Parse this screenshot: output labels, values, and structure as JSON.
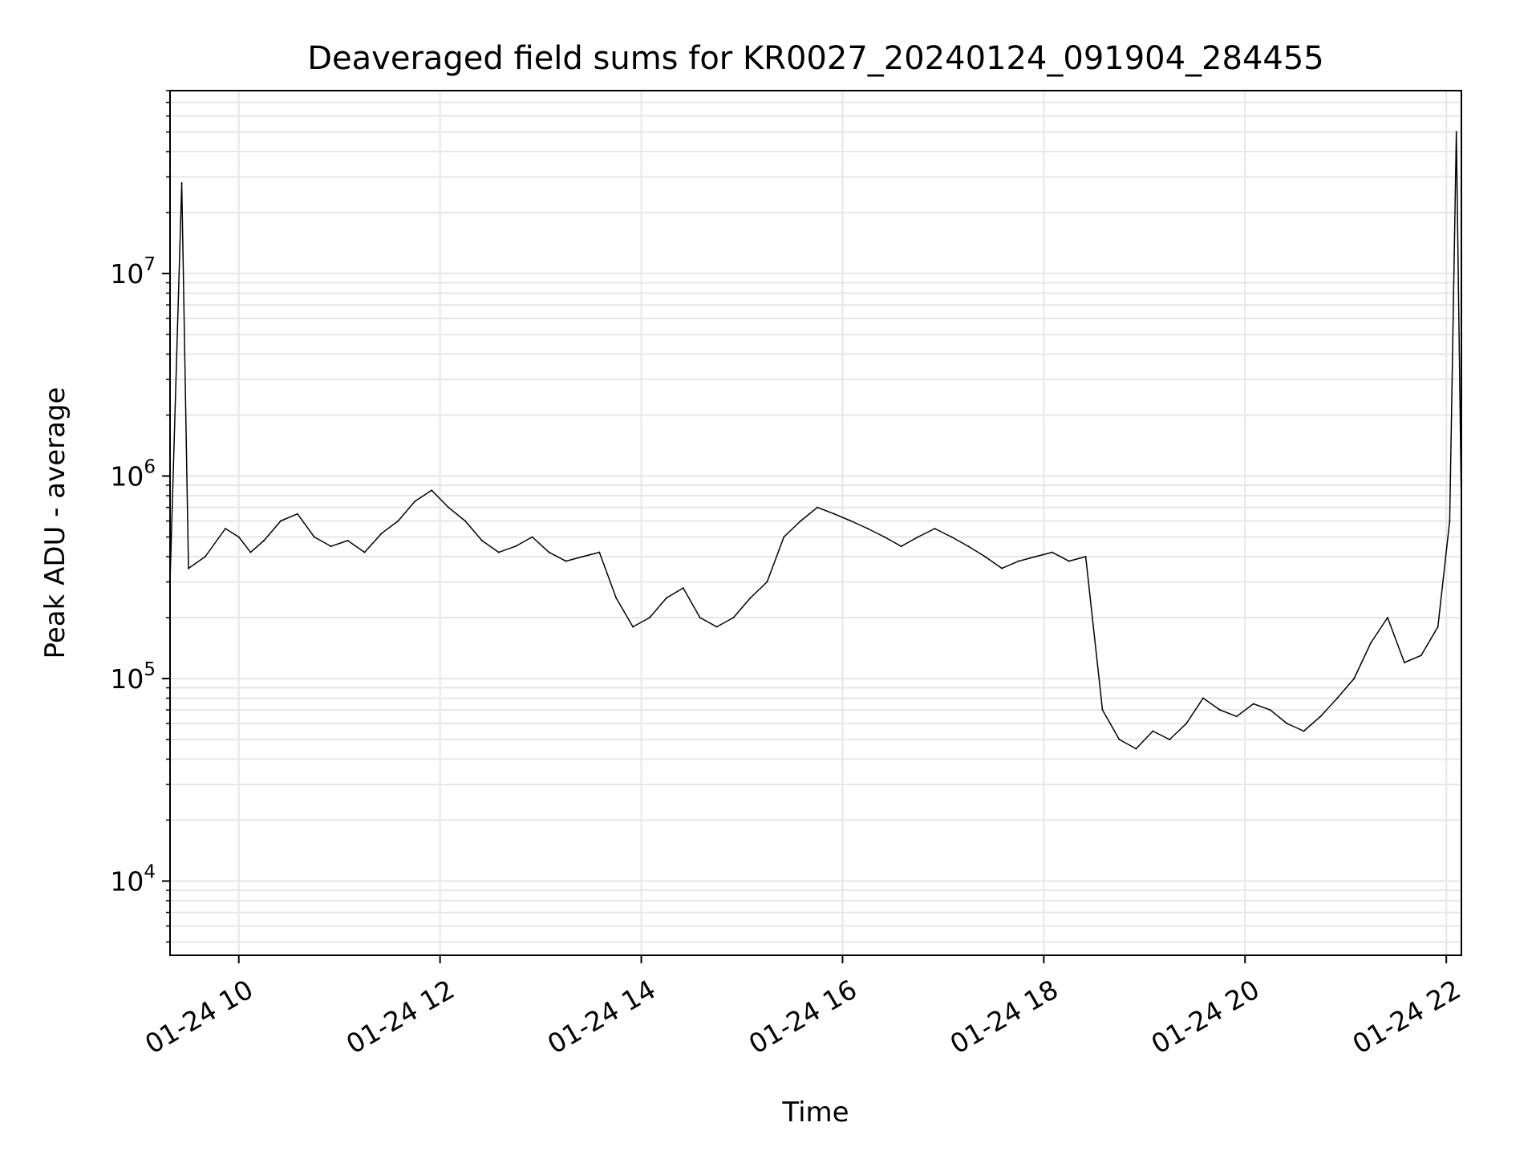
{
  "chart_data": {
    "type": "line",
    "title": "Deaveraged field sums for KR0027_20240124_091904_284455",
    "xlabel": "Time",
    "ylabel": "Peak ADU - average",
    "yscale": "log",
    "ylim": [
      4300,
      80000000
    ],
    "xlim": [
      "01-24 09:19",
      "01-24 22:09"
    ],
    "grid": true,
    "x_ticks": [
      "01-24 10",
      "01-24 12",
      "01-24 14",
      "01-24 16",
      "01-24 18",
      "01-24 20",
      "01-24 22"
    ],
    "y_ticks": [
      {
        "base": "10",
        "exp": "4"
      },
      {
        "base": "10",
        "exp": "5"
      },
      {
        "base": "10",
        "exp": "6"
      },
      {
        "base": "10",
        "exp": "7"
      }
    ],
    "line_color": "#000000",
    "series": [
      {
        "x": [
          "01-24 09:19",
          "01-24 09:26",
          "01-24 09:30",
          "01-24 09:40",
          "01-24 09:52",
          "01-24 10:00",
          "01-24 10:07",
          "01-24 10:15",
          "01-24 10:25",
          "01-24 10:35",
          "01-24 10:45",
          "01-24 10:55",
          "01-24 11:05",
          "01-24 11:15",
          "01-24 11:25",
          "01-24 11:35",
          "01-24 11:45",
          "01-24 11:55",
          "01-24 12:05",
          "01-24 12:15",
          "01-24 12:25",
          "01-24 12:35",
          "01-24 12:45",
          "01-24 12:55",
          "01-24 13:05",
          "01-24 13:15",
          "01-24 13:25",
          "01-24 13:35",
          "01-24 13:45",
          "01-24 13:55",
          "01-24 14:05",
          "01-24 14:15",
          "01-24 14:25",
          "01-24 14:35",
          "01-24 14:45",
          "01-24 14:55",
          "01-24 15:05",
          "01-24 15:15",
          "01-24 15:25",
          "01-24 15:35",
          "01-24 15:45",
          "01-24 15:55",
          "01-24 16:05",
          "01-24 16:15",
          "01-24 16:25",
          "01-24 16:35",
          "01-24 16:45",
          "01-24 16:55",
          "01-24 17:05",
          "01-24 17:15",
          "01-24 17:25",
          "01-24 17:35",
          "01-24 17:45",
          "01-24 17:55",
          "01-24 18:05",
          "01-24 18:15",
          "01-24 18:25",
          "01-24 18:35",
          "01-24 18:45",
          "01-24 18:55",
          "01-24 19:05",
          "01-24 19:15",
          "01-24 19:25",
          "01-24 19:35",
          "01-24 19:45",
          "01-24 19:55",
          "01-24 20:05",
          "01-24 20:15",
          "01-24 20:25",
          "01-24 20:35",
          "01-24 20:45",
          "01-24 20:55",
          "01-24 21:05",
          "01-24 21:15",
          "01-24 21:25",
          "01-24 21:35",
          "01-24 21:45",
          "01-24 21:55",
          "01-24 22:02",
          "01-24 22:06",
          "01-24 22:09"
        ],
        "y": [
          300000,
          28000000,
          350000,
          400000,
          550000,
          500000,
          420000,
          480000,
          600000,
          650000,
          500000,
          450000,
          480000,
          420000,
          520000,
          600000,
          750000,
          850000,
          700000,
          600000,
          480000,
          420000,
          450000,
          500000,
          420000,
          380000,
          400000,
          420000,
          250000,
          180000,
          200000,
          250000,
          280000,
          200000,
          180000,
          200000,
          250000,
          300000,
          500000,
          600000,
          700000,
          650000,
          600000,
          550000,
          500000,
          450000,
          500000,
          550000,
          500000,
          450000,
          400000,
          350000,
          380000,
          400000,
          420000,
          380000,
          400000,
          70000,
          50000,
          45000,
          55000,
          50000,
          60000,
          80000,
          70000,
          65000,
          75000,
          70000,
          60000,
          55000,
          65000,
          80000,
          100000,
          150000,
          200000,
          120000,
          130000,
          180000,
          600000,
          50000000,
          700000
        ]
      }
    ]
  }
}
